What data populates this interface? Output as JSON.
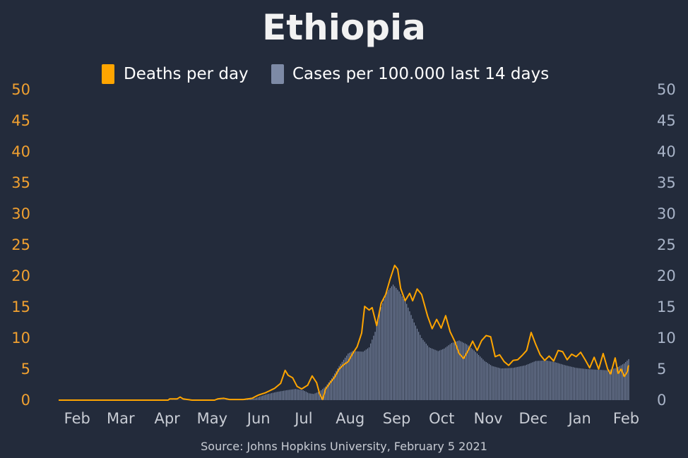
{
  "chart_data": {
    "type": "bar+line",
    "title": "Ethiopia",
    "source": "Source: Johns Hopkins University, February 5 2021",
    "legend": [
      {
        "name": "Deaths per day",
        "color": "#ffa500"
      },
      {
        "name": "Cases per 100.000 last 14 days",
        "color": "#7d8aa6"
      }
    ],
    "legend_placement": "top-center",
    "grid": false,
    "y_left": {
      "min": 0,
      "max": 50,
      "ticks": [
        "0",
        "5",
        "10",
        "15",
        "20",
        "25",
        "30",
        "35",
        "40",
        "45",
        "50"
      ],
      "color": "#f0a030"
    },
    "y_right": {
      "min": 0,
      "max": 50,
      "ticks": [
        "0",
        "5",
        "10",
        "15",
        "20",
        "25",
        "30",
        "35",
        "40",
        "45",
        "50"
      ],
      "color": "#a9b4c8"
    },
    "x_range": [
      "2020-01-22",
      "2021-02-05"
    ],
    "x_ticks": [
      {
        "label": "Feb",
        "date": "2020-02-01"
      },
      {
        "label": "Mar",
        "date": "2020-03-01"
      },
      {
        "label": "Apr",
        "date": "2020-04-01"
      },
      {
        "label": "May",
        "date": "2020-05-01"
      },
      {
        "label": "Jun",
        "date": "2020-06-01"
      },
      {
        "label": "Jul",
        "date": "2020-07-01"
      },
      {
        "label": "Aug",
        "date": "2020-08-01"
      },
      {
        "label": "Sep",
        "date": "2020-09-01"
      },
      {
        "label": "Oct",
        "date": "2020-10-01"
      },
      {
        "label": "Nov",
        "date": "2020-11-01"
      },
      {
        "label": "Dec",
        "date": "2020-12-01"
      },
      {
        "label": "Jan",
        "date": "2021-01-01"
      },
      {
        "label": "Feb",
        "date": "2021-02-01"
      }
    ],
    "series": [
      {
        "name": "Cases per 100.000 last 14 days",
        "type": "bar",
        "axis": "right",
        "color": "#7d8aa6",
        "points": [
          [
            "2020-01-22",
            0
          ],
          [
            "2020-03-13",
            0
          ],
          [
            "2020-04-15",
            0.05
          ],
          [
            "2020-05-15",
            0.05
          ],
          [
            "2020-05-25",
            0.1
          ],
          [
            "2020-06-01",
            0.3
          ],
          [
            "2020-06-08",
            0.9
          ],
          [
            "2020-06-15",
            1.3
          ],
          [
            "2020-06-22",
            1.6
          ],
          [
            "2020-06-28",
            1.8
          ],
          [
            "2020-07-03",
            1.6
          ],
          [
            "2020-07-07",
            1.1
          ],
          [
            "2020-07-10",
            1.0
          ],
          [
            "2020-07-14",
            1.4
          ],
          [
            "2020-07-18",
            2.2
          ],
          [
            "2020-07-22",
            3.5
          ],
          [
            "2020-07-27",
            5.5
          ],
          [
            "2020-08-02",
            7.5
          ],
          [
            "2020-08-05",
            7.9
          ],
          [
            "2020-08-12",
            7.8
          ],
          [
            "2020-08-16",
            8.5
          ],
          [
            "2020-08-20",
            11.0
          ],
          [
            "2020-08-24",
            15.0
          ],
          [
            "2020-08-28",
            17.5
          ],
          [
            "2020-09-01",
            18.6
          ],
          [
            "2020-09-05",
            17.5
          ],
          [
            "2020-09-10",
            15.5
          ],
          [
            "2020-09-15",
            12.5
          ],
          [
            "2020-09-20",
            10.0
          ],
          [
            "2020-09-25",
            8.5
          ],
          [
            "2020-10-01",
            7.9
          ],
          [
            "2020-10-05",
            8.3
          ],
          [
            "2020-10-10",
            9.2
          ],
          [
            "2020-10-15",
            9.6
          ],
          [
            "2020-10-20",
            9.0
          ],
          [
            "2020-10-25",
            8.0
          ],
          [
            "2020-11-01",
            6.3
          ],
          [
            "2020-11-06",
            5.5
          ],
          [
            "2020-11-12",
            5.1
          ],
          [
            "2020-11-20",
            5.2
          ],
          [
            "2020-11-28",
            5.6
          ],
          [
            "2020-12-05",
            6.3
          ],
          [
            "2020-12-12",
            6.4
          ],
          [
            "2020-12-18",
            6.1
          ],
          [
            "2020-12-25",
            5.6
          ],
          [
            "2021-01-01",
            5.2
          ],
          [
            "2021-01-08",
            5.0
          ],
          [
            "2021-01-15",
            4.9
          ],
          [
            "2021-01-22",
            4.8
          ],
          [
            "2021-01-28",
            5.2
          ],
          [
            "2021-02-02",
            5.9
          ],
          [
            "2021-02-05",
            6.6
          ]
        ]
      },
      {
        "name": "Deaths per day",
        "type": "line",
        "axis": "left",
        "color": "#ffa500",
        "points": [
          [
            "2020-01-22",
            0
          ],
          [
            "2020-04-04",
            0
          ],
          [
            "2020-04-05",
            0.2
          ],
          [
            "2020-04-10",
            0.2
          ],
          [
            "2020-04-12",
            0.5
          ],
          [
            "2020-04-14",
            0.2
          ],
          [
            "2020-04-20",
            0
          ],
          [
            "2020-05-05",
            0
          ],
          [
            "2020-05-07",
            0.2
          ],
          [
            "2020-05-11",
            0.3
          ],
          [
            "2020-05-15",
            0.1
          ],
          [
            "2020-05-24",
            0.1
          ],
          [
            "2020-05-30",
            0.3
          ],
          [
            "2020-06-03",
            0.8
          ],
          [
            "2020-06-08",
            1.2
          ],
          [
            "2020-06-14",
            1.9
          ],
          [
            "2020-06-18",
            2.7
          ],
          [
            "2020-06-21",
            4.8
          ],
          [
            "2020-06-23",
            4.0
          ],
          [
            "2020-06-26",
            3.6
          ],
          [
            "2020-06-29",
            2.2
          ],
          [
            "2020-07-02",
            1.8
          ],
          [
            "2020-07-06",
            2.4
          ],
          [
            "2020-07-09",
            3.9
          ],
          [
            "2020-07-12",
            2.8
          ],
          [
            "2020-07-14",
            1.0
          ],
          [
            "2020-07-16",
            0.1
          ],
          [
            "2020-07-18",
            1.8
          ],
          [
            "2020-07-21",
            2.8
          ],
          [
            "2020-07-24",
            3.7
          ],
          [
            "2020-07-27",
            5.0
          ],
          [
            "2020-07-30",
            5.7
          ],
          [
            "2020-08-02",
            6.2
          ],
          [
            "2020-08-05",
            7.5
          ],
          [
            "2020-08-08",
            8.6
          ],
          [
            "2020-08-11",
            10.8
          ],
          [
            "2020-08-13",
            15.1
          ],
          [
            "2020-08-16",
            14.5
          ],
          [
            "2020-08-18",
            14.9
          ],
          [
            "2020-08-21",
            12.0
          ],
          [
            "2020-08-24",
            15.6
          ],
          [
            "2020-08-27",
            17.0
          ],
          [
            "2020-08-30",
            19.5
          ],
          [
            "2020-09-02",
            21.7
          ],
          [
            "2020-09-04",
            21.1
          ],
          [
            "2020-09-06",
            18.0
          ],
          [
            "2020-09-09",
            16.0
          ],
          [
            "2020-09-12",
            17.2
          ],
          [
            "2020-09-14",
            16.0
          ],
          [
            "2020-09-17",
            17.9
          ],
          [
            "2020-09-20",
            17.0
          ],
          [
            "2020-09-24",
            13.5
          ],
          [
            "2020-09-27",
            11.5
          ],
          [
            "2020-09-30",
            13.0
          ],
          [
            "2020-10-03",
            11.6
          ],
          [
            "2020-10-06",
            13.6
          ],
          [
            "2020-10-09",
            11.0
          ],
          [
            "2020-10-12",
            9.5
          ],
          [
            "2020-10-15",
            7.5
          ],
          [
            "2020-10-18",
            6.7
          ],
          [
            "2020-10-21",
            8.0
          ],
          [
            "2020-10-24",
            9.5
          ],
          [
            "2020-10-27",
            8.0
          ],
          [
            "2020-10-30",
            9.6
          ],
          [
            "2020-11-02",
            10.4
          ],
          [
            "2020-11-05",
            10.2
          ],
          [
            "2020-11-08",
            7.0
          ],
          [
            "2020-11-11",
            7.3
          ],
          [
            "2020-11-14",
            6.2
          ],
          [
            "2020-11-17",
            5.6
          ],
          [
            "2020-11-20",
            6.4
          ],
          [
            "2020-11-23",
            6.5
          ],
          [
            "2020-11-26",
            7.2
          ],
          [
            "2020-11-29",
            8.0
          ],
          [
            "2020-12-02",
            10.9
          ],
          [
            "2020-12-05",
            9.0
          ],
          [
            "2020-12-08",
            7.3
          ],
          [
            "2020-12-11",
            6.4
          ],
          [
            "2020-12-14",
            7.1
          ],
          [
            "2020-12-17",
            6.3
          ],
          [
            "2020-12-20",
            8.0
          ],
          [
            "2020-12-23",
            7.8
          ],
          [
            "2020-12-26",
            6.5
          ],
          [
            "2020-12-29",
            7.4
          ],
          [
            "2021-01-01",
            7.0
          ],
          [
            "2021-01-04",
            7.7
          ],
          [
            "2021-01-07",
            6.5
          ],
          [
            "2021-01-10",
            5.2
          ],
          [
            "2021-01-13",
            6.9
          ],
          [
            "2021-01-16",
            5.0
          ],
          [
            "2021-01-19",
            7.5
          ],
          [
            "2021-01-22",
            5.0
          ],
          [
            "2021-01-24",
            4.2
          ],
          [
            "2021-01-27",
            6.8
          ],
          [
            "2021-01-29",
            4.3
          ],
          [
            "2021-01-31",
            5.0
          ],
          [
            "2021-02-02",
            3.8
          ],
          [
            "2021-02-04",
            4.5
          ],
          [
            "2021-02-05",
            5.6
          ]
        ]
      }
    ]
  }
}
